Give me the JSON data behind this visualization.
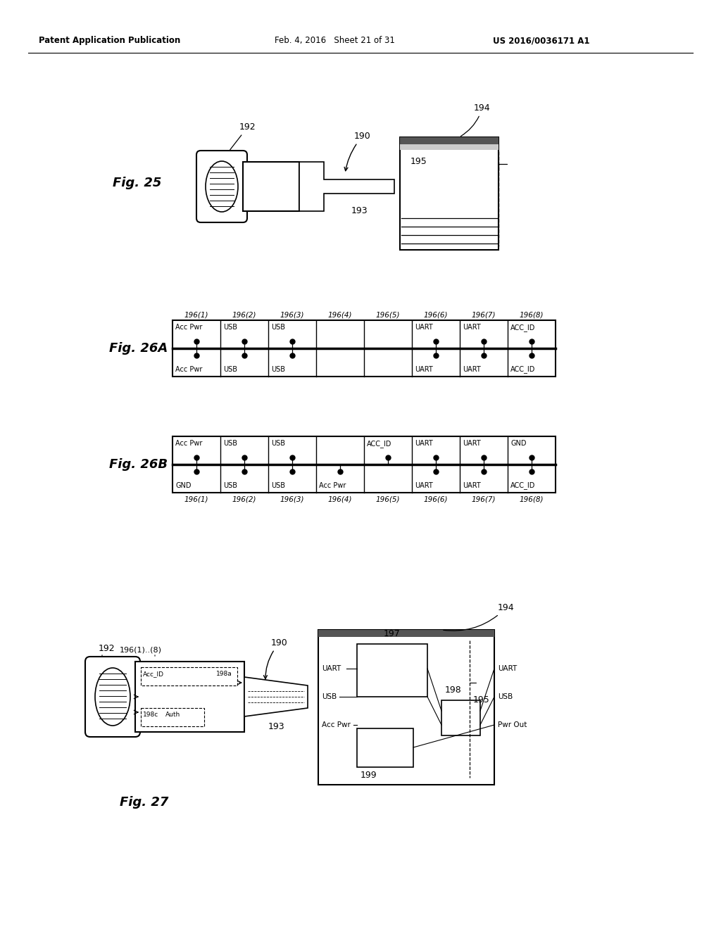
{
  "bg_color": "#ffffff",
  "header_left": "Patent Application Publication",
  "header_mid": "Feb. 4, 2016   Sheet 21 of 31",
  "header_right": "US 2016/0036171 A1",
  "fig25_label": "Fig. 25",
  "fig26a_label": "Fig. 26A",
  "fig26b_label": "Fig. 26B",
  "fig27_label": "Fig. 27",
  "col_labels": [
    "196(1)",
    "196(2)",
    "196(3)",
    "196(4)",
    "196(5)",
    "196(6)",
    "196(7)",
    "196(8)"
  ],
  "row26a_top": [
    "Acc Pwr",
    "USB",
    "USB",
    "",
    "",
    "UART",
    "UART",
    "ACC_ID"
  ],
  "row26a_bot": [
    "Acc Pwr",
    "USB",
    "USB",
    "",
    "",
    "UART",
    "UART",
    "ACC_ID"
  ],
  "row26b_top": [
    "Acc Pwr",
    "USB",
    "USB",
    "",
    "ACC_ID",
    "UART",
    "UART",
    "GND"
  ],
  "row26b_bot": [
    "GND",
    "USB",
    "USB",
    "Acc Pwr",
    "",
    "UART",
    "UART",
    "ACC_ID"
  ]
}
